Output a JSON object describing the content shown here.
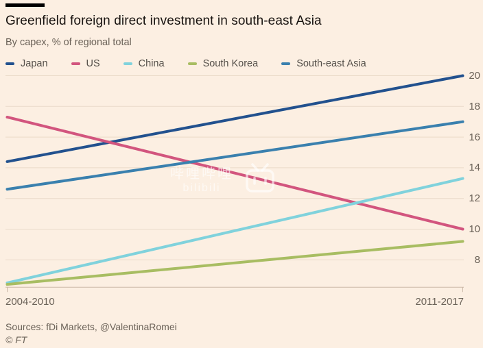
{
  "header": {
    "title": "Greenfield foreign direct investment in south-east Asia",
    "subtitle": "By capex, % of regional total"
  },
  "footer": {
    "sources": "Sources: fDi Markets, @ValentinaRomei",
    "copyright": "© FT"
  },
  "watermark": {
    "line1": "哔哩哔哩",
    "line2": "bilibili",
    "icon": "bilibili-tv-icon"
  },
  "colors": {
    "background": "#fcefe2",
    "grid": "#eadac9",
    "axis": "#c9b7a6",
    "text_primary": "#181310",
    "text_secondary": "#6b6258"
  },
  "chart_data": {
    "type": "line",
    "categories": [
      "2004-2010",
      "2011-2017"
    ],
    "series": [
      {
        "name": "Japan",
        "color": "#22518e",
        "values": [
          14.4,
          20.0
        ]
      },
      {
        "name": "US",
        "color": "#d2557e",
        "values": [
          17.3,
          10.0
        ]
      },
      {
        "name": "China",
        "color": "#80d2dc",
        "values": [
          6.5,
          13.3
        ]
      },
      {
        "name": "South Korea",
        "color": "#a8bd62",
        "values": [
          6.4,
          9.2
        ]
      },
      {
        "name": "South-east Asia",
        "color": "#3a80ae",
        "values": [
          12.6,
          17.0
        ]
      }
    ],
    "yticks": [
      8,
      10,
      12,
      14,
      16,
      18,
      20
    ],
    "ylim_top": 20,
    "ylabel": "",
    "xlabel": "",
    "grid": true,
    "legend_position": "top",
    "axis_side": "right"
  }
}
